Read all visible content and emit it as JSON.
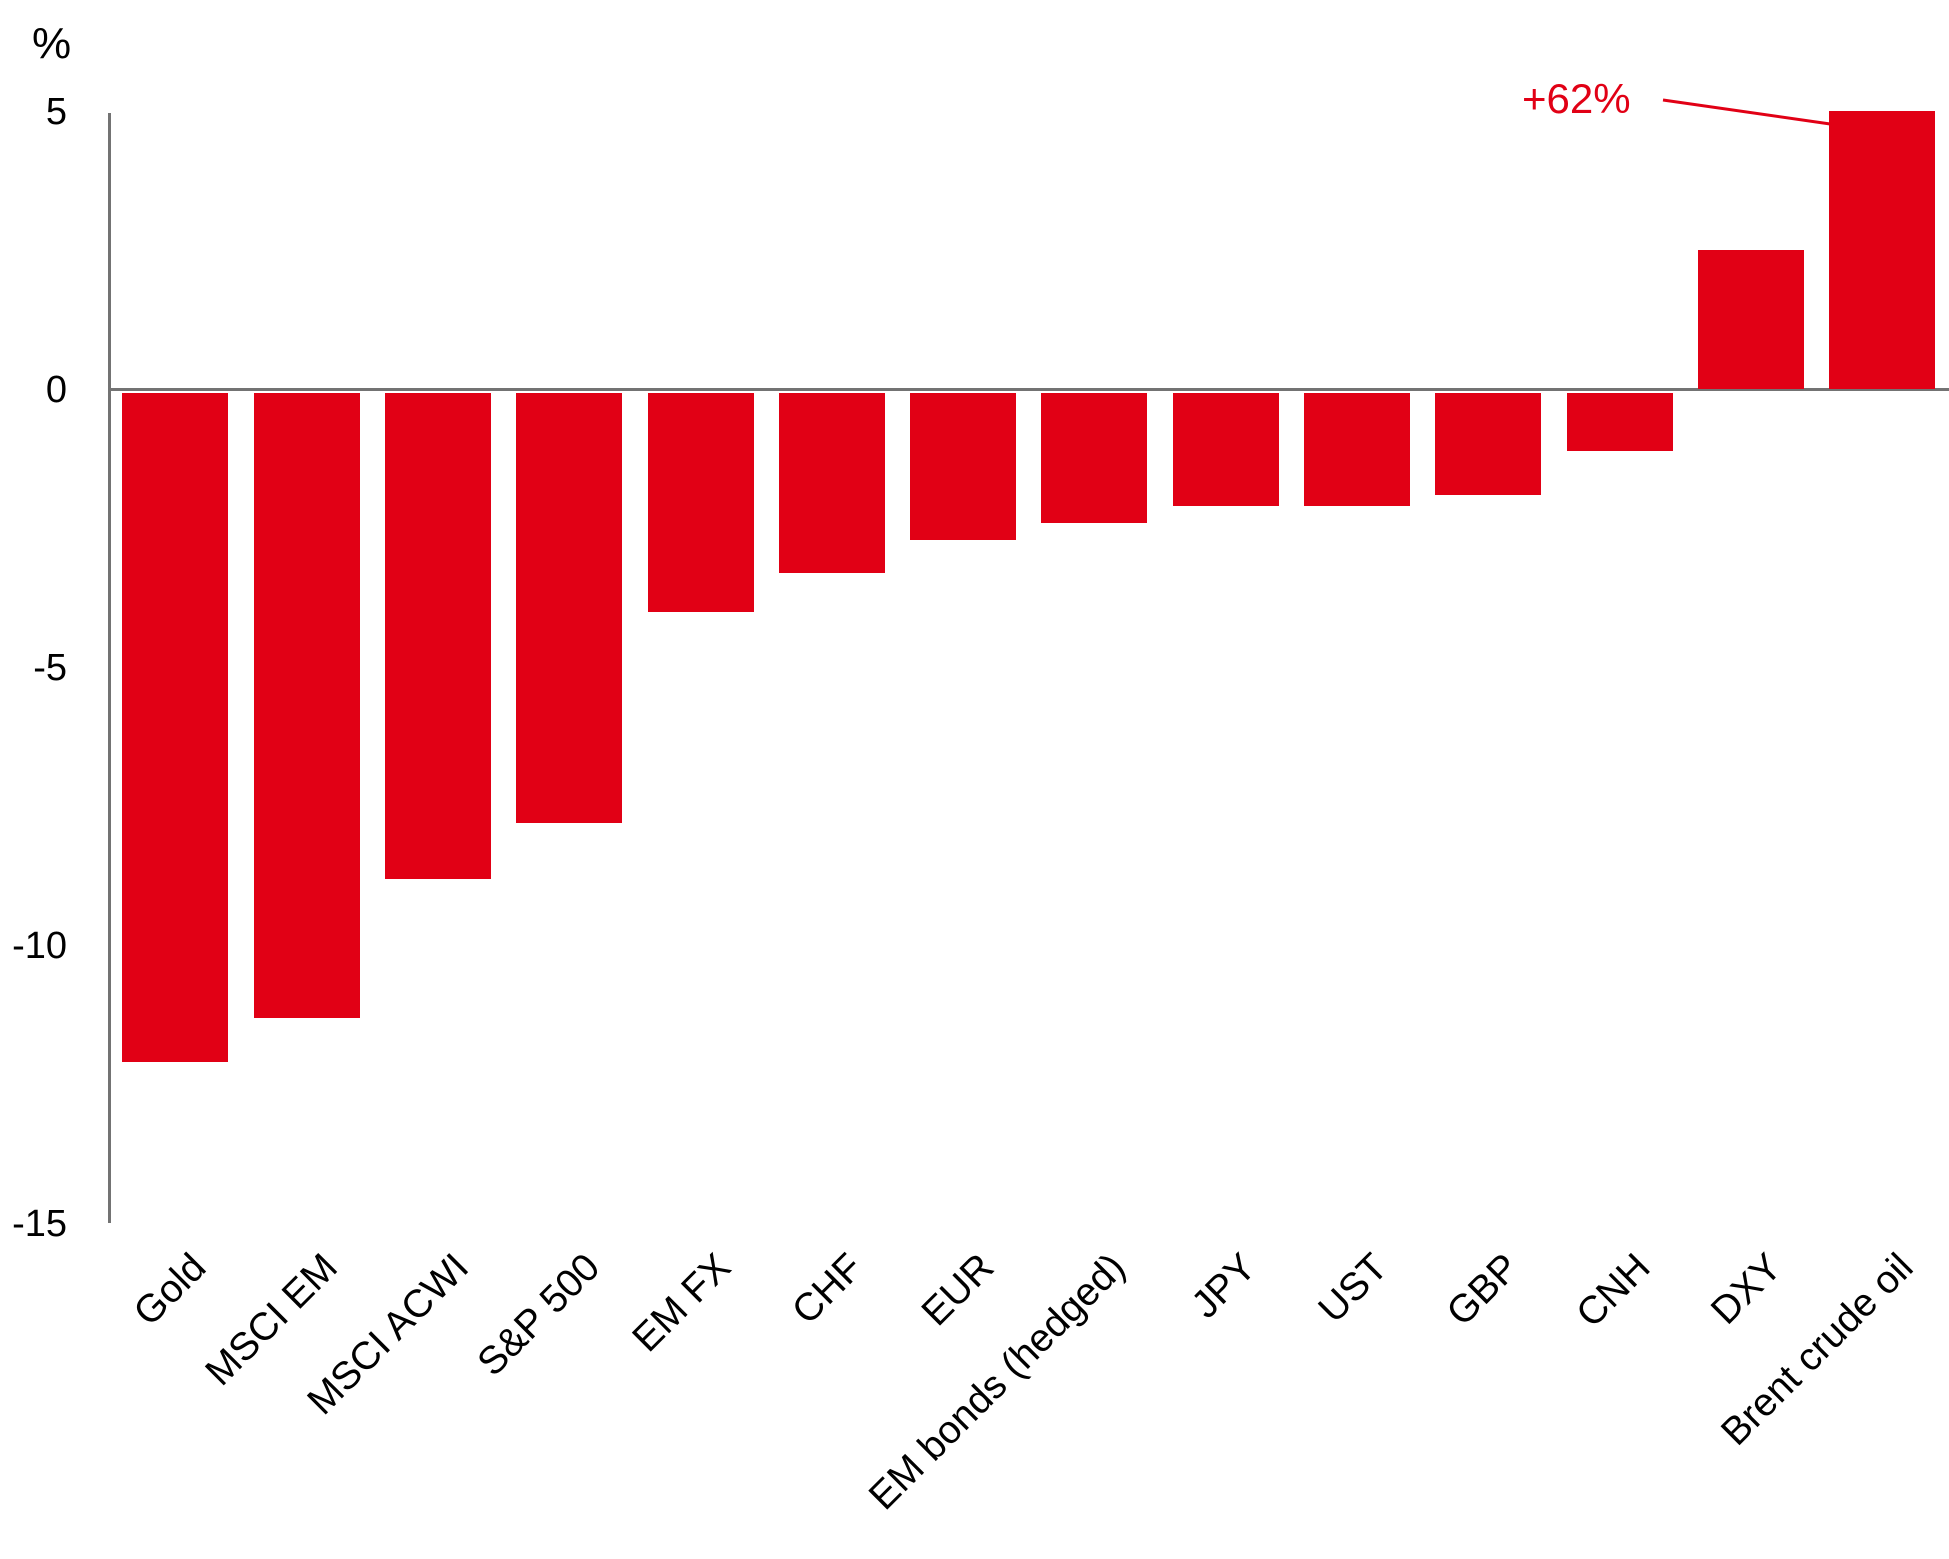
{
  "chart_data": {
    "type": "bar",
    "title": "",
    "unit_label": "%",
    "categories": [
      "Gold",
      "MSCI EM",
      "MSCI ACWI",
      "S&P 500",
      "EM FX",
      "CHF",
      "EUR",
      "EM bonds (hedged)",
      "JPY",
      "UST",
      "GBP",
      "CNH",
      "DXY",
      "Brent crude oil"
    ],
    "values": [
      -12.1,
      -11.3,
      -8.8,
      -7.8,
      -4.0,
      -3.3,
      -2.7,
      -2.4,
      -2.1,
      -2.1,
      -1.9,
      -1.1,
      2.5,
      62
    ],
    "ylim": [
      -15,
      5
    ],
    "yticks": [
      5,
      0,
      -5,
      -10,
      -15
    ],
    "grid": false,
    "legend": "none",
    "annotation": {
      "text": "+62%",
      "target_category": "Brent crude oil",
      "note": "bar clipped at top of axis"
    },
    "colors": {
      "bar": "#e10015",
      "axis": "#737373",
      "text": "#000000",
      "accent": "#e10015"
    }
  }
}
